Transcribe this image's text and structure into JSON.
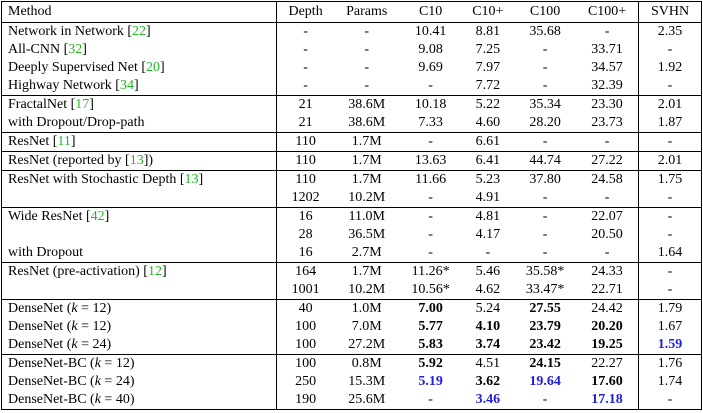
{
  "header": [
    "Method",
    "Depth",
    "Params",
    "C10",
    "C10+",
    "C100",
    "C100+",
    "SVHN"
  ],
  "groups": [
    [
      {
        "method": [
          {
            "t": "Network in Network ["
          },
          {
            "t": "22",
            "s": "cite"
          },
          {
            "t": "]"
          }
        ],
        "cells": [
          "-",
          "-",
          "10.41",
          "8.81",
          "35.68",
          "-",
          "2.35"
        ]
      },
      {
        "method": [
          {
            "t": "All-CNN ["
          },
          {
            "t": "32",
            "s": "cite"
          },
          {
            "t": "]"
          }
        ],
        "cells": [
          "-",
          "-",
          "9.08",
          "7.25",
          "-",
          "33.71",
          "-"
        ]
      },
      {
        "method": [
          {
            "t": "Deeply Supervised Net ["
          },
          {
            "t": "20",
            "s": "cite"
          },
          {
            "t": "]"
          }
        ],
        "cells": [
          "-",
          "-",
          "9.69",
          "7.97",
          "-",
          "34.57",
          "1.92"
        ]
      },
      {
        "method": [
          {
            "t": "Highway Network ["
          },
          {
            "t": "34",
            "s": "cite"
          },
          {
            "t": "]"
          }
        ],
        "cells": [
          "-",
          "-",
          "-",
          "7.72",
          "-",
          "32.39",
          "-"
        ]
      }
    ],
    [
      {
        "method": [
          {
            "t": "FractalNet ["
          },
          {
            "t": "17",
            "s": "cite"
          },
          {
            "t": "]"
          }
        ],
        "cells": [
          "21",
          "38.6M",
          "10.18",
          "5.22",
          "35.34",
          "23.30",
          "2.01"
        ]
      },
      {
        "method": [
          {
            "t": "with Dropout/Drop-path"
          }
        ],
        "cells": [
          "21",
          "38.6M",
          "7.33",
          "4.60",
          "28.20",
          "23.73",
          "1.87"
        ]
      }
    ],
    [
      {
        "method": [
          {
            "t": "ResNet ["
          },
          {
            "t": "11",
            "s": "cite"
          },
          {
            "t": "]"
          }
        ],
        "cells": [
          "110",
          "1.7M",
          "-",
          "6.61",
          "-",
          "-",
          "-"
        ]
      }
    ],
    [
      {
        "method": [
          {
            "t": "ResNet (reported by ["
          },
          {
            "t": "13",
            "s": "cite"
          },
          {
            "t": "])"
          }
        ],
        "cells": [
          "110",
          "1.7M",
          "13.63",
          "6.41",
          "44.74",
          "27.22",
          "2.01"
        ]
      }
    ],
    [
      {
        "method": [
          {
            "t": "ResNet with Stochastic Depth ["
          },
          {
            "t": "13",
            "s": "cite"
          },
          {
            "t": "]"
          }
        ],
        "cells": [
          "110",
          "1.7M",
          "11.66",
          "5.23",
          "37.80",
          "24.58",
          "1.75"
        ]
      },
      {
        "method": [],
        "cells": [
          "1202",
          "10.2M",
          "-",
          "4.91",
          "-",
          "-",
          "-"
        ]
      }
    ],
    [
      {
        "method": [
          {
            "t": "Wide ResNet ["
          },
          {
            "t": "42",
            "s": "cite"
          },
          {
            "t": "]"
          }
        ],
        "cells": [
          "16",
          "11.0M",
          "-",
          "4.81",
          "-",
          "22.07",
          "-"
        ]
      },
      {
        "method": [],
        "cells": [
          "28",
          "36.5M",
          "-",
          "4.17",
          "-",
          "20.50",
          "-"
        ]
      },
      {
        "method": [
          {
            "t": "with Dropout"
          }
        ],
        "cells": [
          "16",
          "2.7M",
          "-",
          "-",
          "-",
          "-",
          "1.64"
        ]
      }
    ],
    [
      {
        "method": [
          {
            "t": "ResNet (pre-activation) ["
          },
          {
            "t": "12",
            "s": "cite"
          },
          {
            "t": "]"
          }
        ],
        "cells": [
          "164",
          "1.7M",
          "11.26*",
          "5.46",
          "35.58*",
          "24.33",
          "-"
        ]
      },
      {
        "method": [],
        "cells": [
          "1001",
          "10.2M",
          "10.56*",
          "4.62",
          "33.47*",
          "22.71",
          "-"
        ]
      }
    ],
    [
      {
        "method": [
          {
            "t": "DenseNet ("
          },
          {
            "t": "k",
            "s": "math"
          },
          {
            "t": " = 12)"
          }
        ],
        "cells": [
          "40",
          "1.0M",
          {
            "text": "7.00",
            "bold": true
          },
          "5.24",
          {
            "text": "27.55",
            "bold": true
          },
          "24.42",
          "1.79"
        ]
      },
      {
        "method": [
          {
            "t": "DenseNet ("
          },
          {
            "t": "k",
            "s": "math"
          },
          {
            "t": " = 12)"
          }
        ],
        "cells": [
          "100",
          "7.0M",
          {
            "text": "5.77",
            "bold": true
          },
          {
            "text": "4.10",
            "bold": true
          },
          {
            "text": "23.79",
            "bold": true
          },
          {
            "text": "20.20",
            "bold": true
          },
          "1.67"
        ]
      },
      {
        "method": [
          {
            "t": "DenseNet ("
          },
          {
            "t": "k",
            "s": "math"
          },
          {
            "t": " = 24)"
          }
        ],
        "cells": [
          "100",
          "27.2M",
          {
            "text": "5.83",
            "bold": true
          },
          {
            "text": "3.74",
            "bold": true
          },
          {
            "text": "23.42",
            "bold": true
          },
          {
            "text": "19.25",
            "bold": true
          },
          {
            "text": "1.59",
            "bold": true,
            "color": "blue"
          }
        ]
      }
    ],
    [
      {
        "method": [
          {
            "t": "DenseNet-BC ("
          },
          {
            "t": "k",
            "s": "math"
          },
          {
            "t": " = 12)"
          }
        ],
        "cells": [
          "100",
          "0.8M",
          {
            "text": "5.92",
            "bold": true
          },
          "4.51",
          {
            "text": "24.15",
            "bold": true
          },
          "22.27",
          "1.76"
        ]
      },
      {
        "method": [
          {
            "t": "DenseNet-BC ("
          },
          {
            "t": "k",
            "s": "math"
          },
          {
            "t": " = 24)"
          }
        ],
        "cells": [
          "250",
          "15.3M",
          {
            "text": "5.19",
            "bold": true,
            "color": "blue"
          },
          {
            "text": "3.62",
            "bold": true
          },
          {
            "text": "19.64",
            "bold": true,
            "color": "blue"
          },
          {
            "text": "17.60",
            "bold": true
          },
          "1.74"
        ]
      },
      {
        "method": [
          {
            "t": "DenseNet-BC ("
          },
          {
            "t": "k",
            "s": "math"
          },
          {
            "t": " = 40)"
          }
        ],
        "cells": [
          "190",
          "25.6M",
          "-",
          {
            "text": "3.46",
            "bold": true,
            "color": "blue"
          },
          "-",
          {
            "text": "17.18",
            "bold": true,
            "color": "blue"
          },
          "-"
        ]
      }
    ]
  ]
}
